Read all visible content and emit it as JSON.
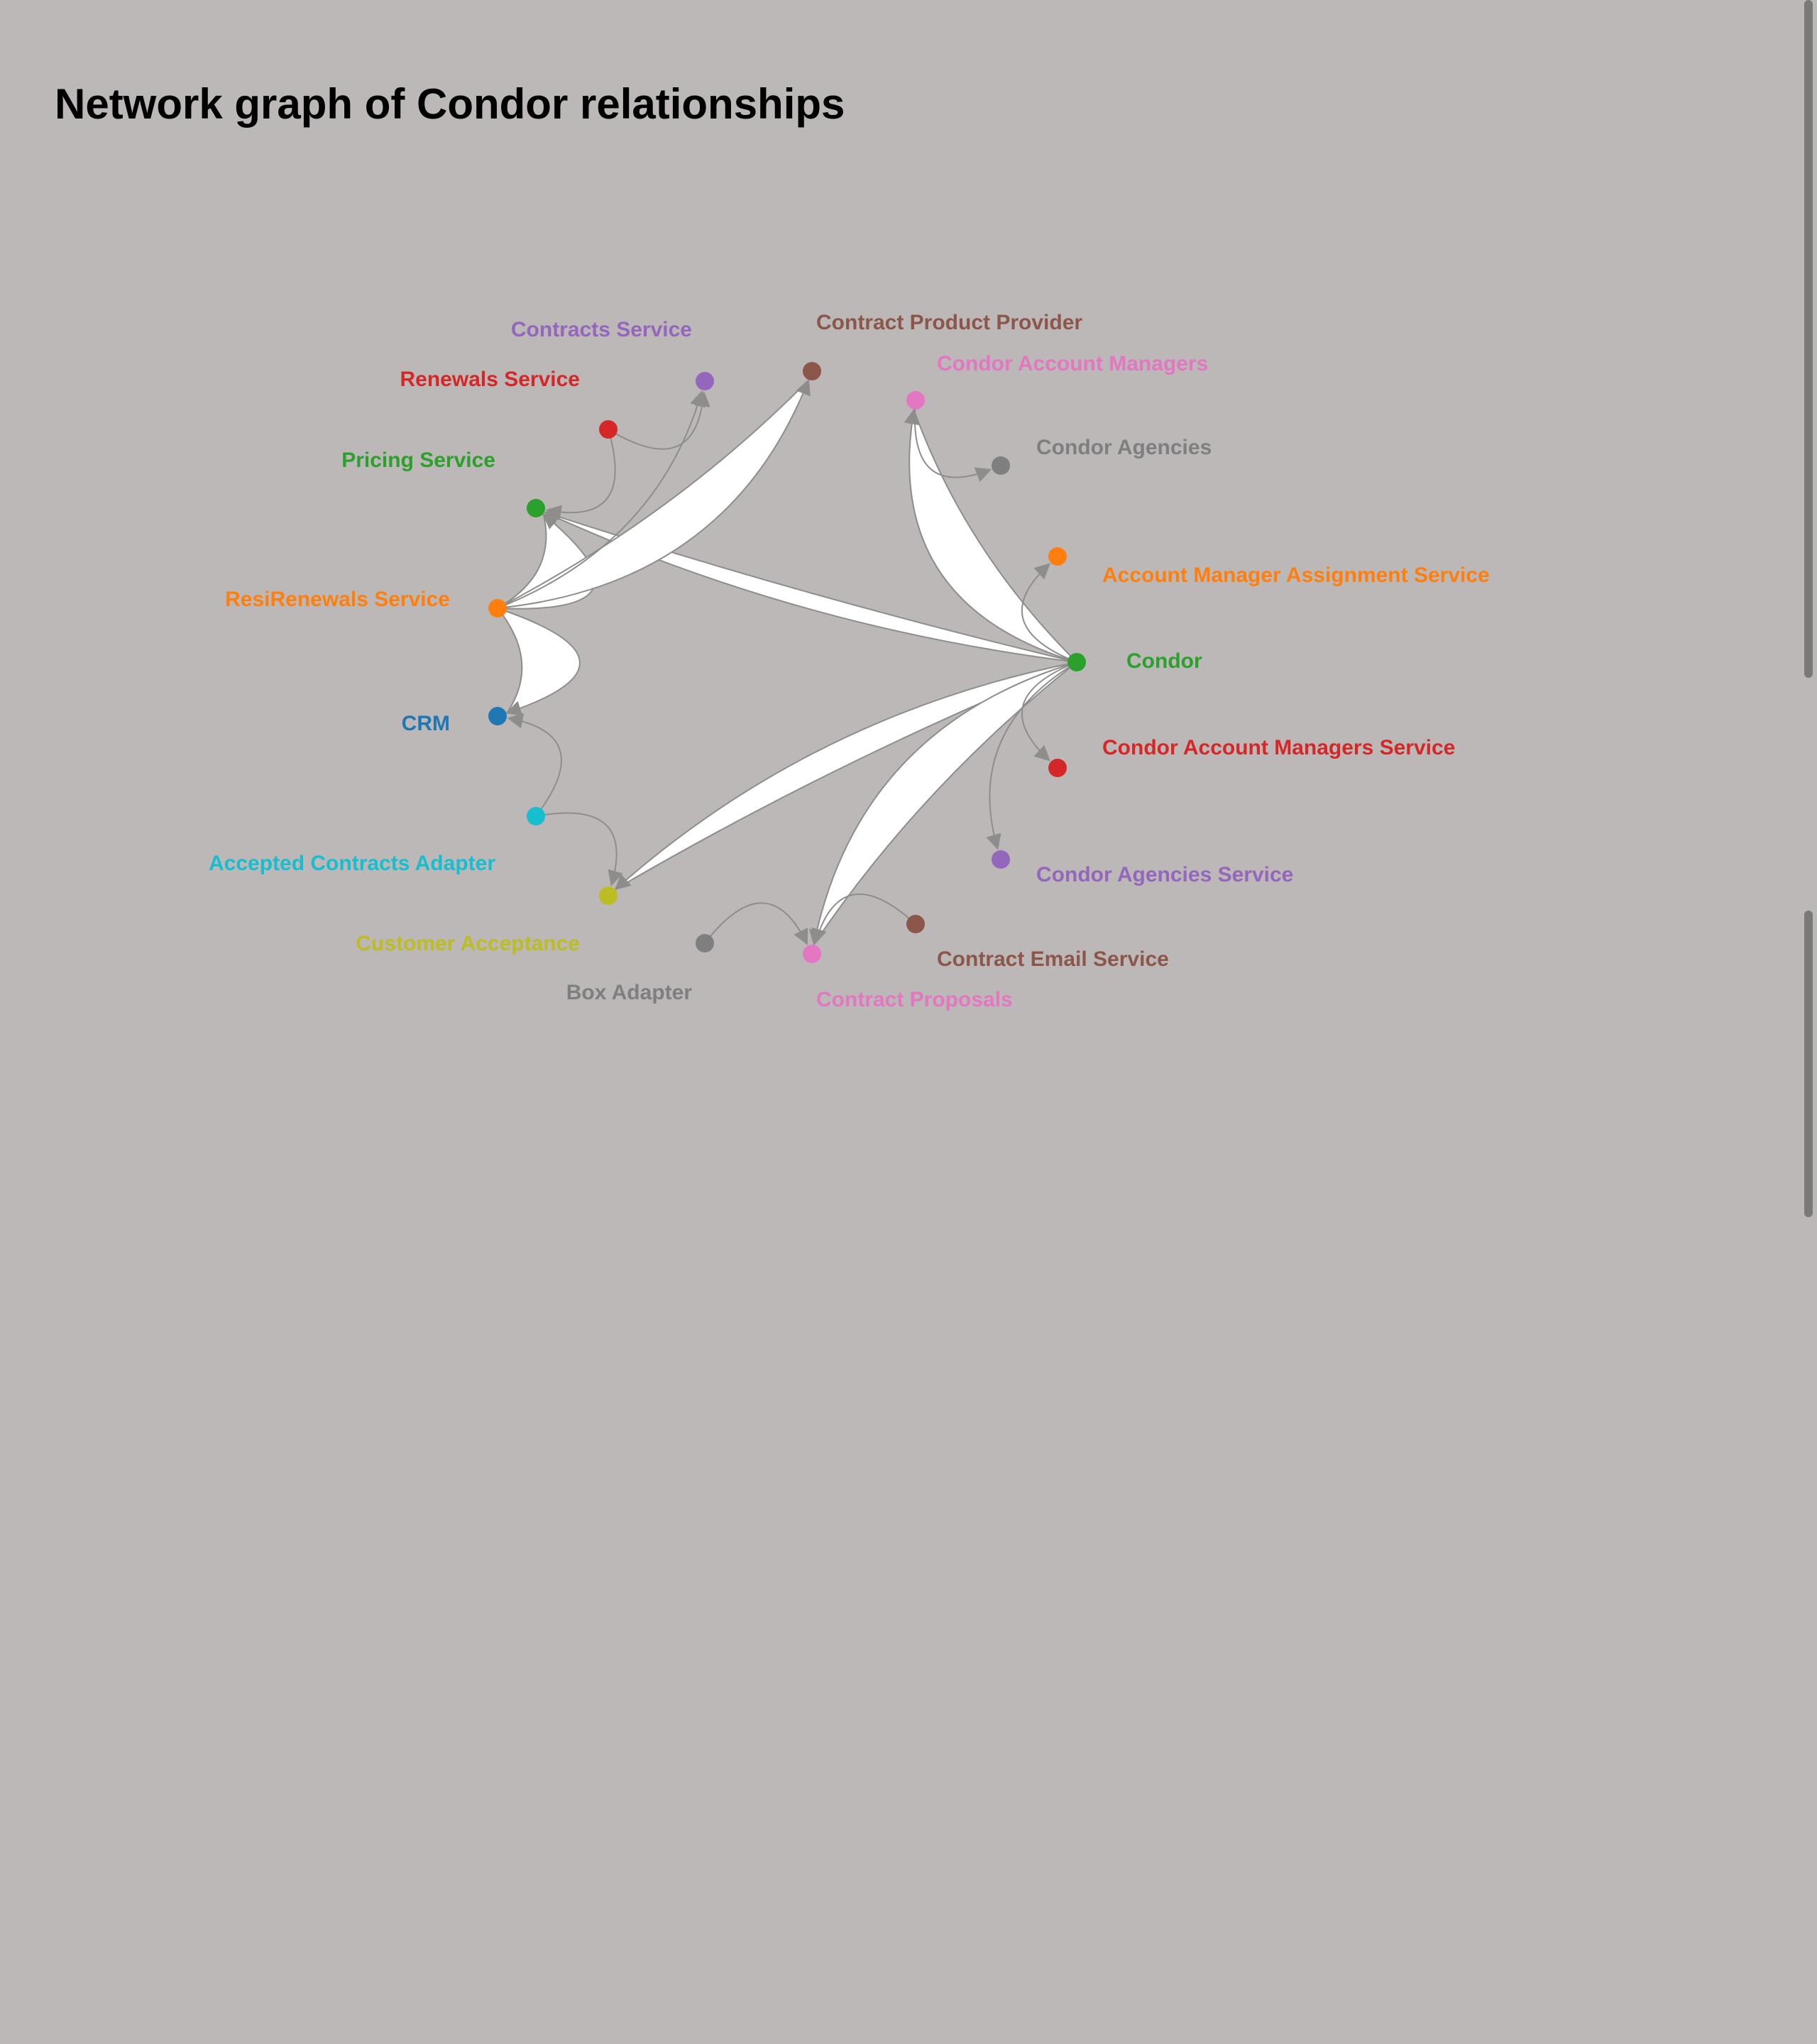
{
  "title": "Network graph of Condor relationships",
  "colors": {
    "background": "#bbb8b7",
    "edge": "#8f8d8c",
    "ribbon_fill": "#ffffff"
  },
  "nodes": [
    {
      "id": "condor",
      "label": "Condor",
      "color": "#2ca02c"
    },
    {
      "id": "ams",
      "label": "Account Manager Assignment Service",
      "color": "#ff7f0e"
    },
    {
      "id": "agencies",
      "label": "Condor Agencies",
      "color": "#7f7f7f"
    },
    {
      "id": "cam",
      "label": "Condor Account Managers",
      "color": "#e377c2"
    },
    {
      "id": "cpp",
      "label": "Contract Product Provider",
      "color": "#8c564b"
    },
    {
      "id": "contracts",
      "label": "Contracts Service",
      "color": "#9467bd"
    },
    {
      "id": "renewals",
      "label": "Renewals Service",
      "color": "#d62728"
    },
    {
      "id": "pricing",
      "label": "Pricing Service",
      "color": "#2ca02c"
    },
    {
      "id": "resi",
      "label": "ResiRenewals Service",
      "color": "#ff7f0e"
    },
    {
      "id": "crm",
      "label": "CRM",
      "color": "#1f77b4"
    },
    {
      "id": "acc_adapter",
      "label": "Accepted Contracts Adapter",
      "color": "#17becf"
    },
    {
      "id": "cust_accept",
      "label": "Customer Acceptance",
      "color": "#bcbd22"
    },
    {
      "id": "box",
      "label": "Box Adapter",
      "color": "#7f7f7f"
    },
    {
      "id": "proposals",
      "label": "Contract Proposals",
      "color": "#e377c2"
    },
    {
      "id": "email",
      "label": "Contract Email Service",
      "color": "#8c564b"
    },
    {
      "id": "agencies_svc",
      "label": "Condor Agencies Service",
      "color": "#9467bd"
    },
    {
      "id": "cams",
      "label": "Condor Account Managers Service",
      "color": "#d62728"
    }
  ],
  "edges": [
    {
      "source": "condor",
      "target": "cam",
      "style": "ribbon"
    },
    {
      "source": "condor",
      "target": "pricing",
      "style": "ribbon"
    },
    {
      "source": "condor",
      "target": "cust_accept",
      "style": "ribbon"
    },
    {
      "source": "condor",
      "target": "proposals",
      "style": "ribbon"
    },
    {
      "source": "condor",
      "target": "ams",
      "style": "line"
    },
    {
      "source": "condor",
      "target": "cams",
      "style": "line"
    },
    {
      "source": "condor",
      "target": "agencies_svc",
      "style": "line"
    },
    {
      "source": "cam",
      "target": "agencies",
      "style": "line"
    },
    {
      "source": "resi",
      "target": "crm",
      "style": "ribbon"
    },
    {
      "source": "resi",
      "target": "pricing",
      "style": "ribbon"
    },
    {
      "source": "resi",
      "target": "cpp",
      "style": "ribbon"
    },
    {
      "source": "resi",
      "target": "contracts",
      "style": "line"
    },
    {
      "source": "renewals",
      "target": "pricing",
      "style": "line"
    },
    {
      "source": "renewals",
      "target": "contracts",
      "style": "line"
    },
    {
      "source": "acc_adapter",
      "target": "crm",
      "style": "line"
    },
    {
      "source": "acc_adapter",
      "target": "cust_accept",
      "style": "line"
    },
    {
      "source": "email",
      "target": "proposals",
      "style": "line"
    },
    {
      "source": "box",
      "target": "proposals",
      "style": "line"
    }
  ]
}
